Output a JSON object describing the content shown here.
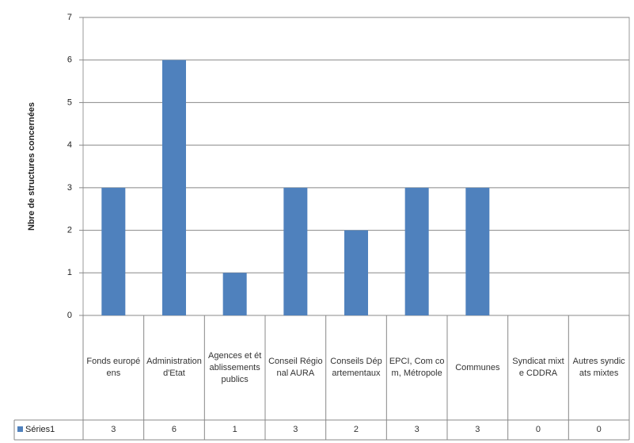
{
  "chart_data": {
    "type": "bar",
    "y_axis_label": "Nbre de structures concernées",
    "categories": [
      "Fonds européens",
      "Administration d'Etat",
      "Agences et établissements publics",
      "Conseil Régional AURA",
      "Conseils Départementaux",
      "EPCI, Com com, Métropole",
      "Communes",
      "Syndicat mixte CDDRA",
      "Autres syndicats mixtes"
    ],
    "series": [
      {
        "name": "Séries1",
        "color": "#4f81bd",
        "values": [
          3,
          6,
          1,
          3,
          2,
          3,
          3,
          0,
          0
        ]
      }
    ],
    "ylim": [
      0,
      7
    ],
    "yticks": [
      0,
      1,
      2,
      3,
      4,
      5,
      6,
      7
    ],
    "grid": true,
    "data_table": true
  }
}
